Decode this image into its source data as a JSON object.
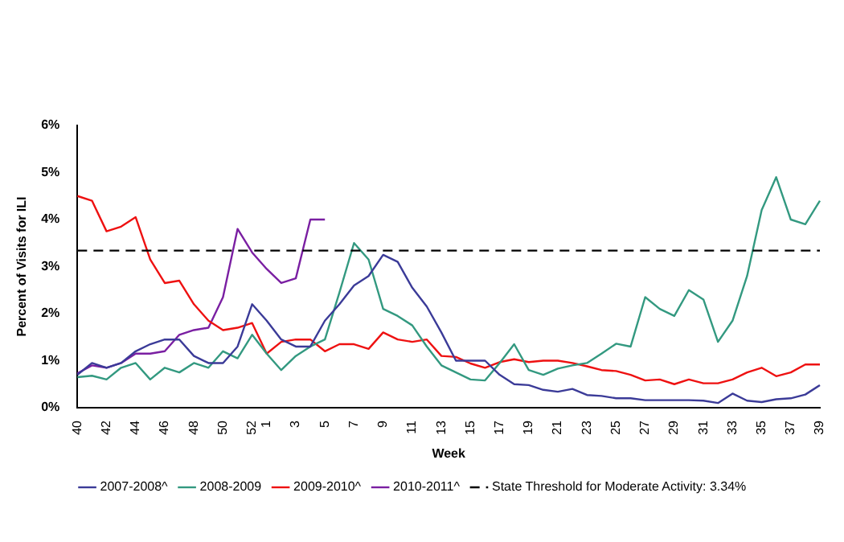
{
  "chart_data": {
    "type": "line",
    "xlabel": "Week",
    "ylabel": "Percent of Visits for ILI",
    "categories": [
      "40",
      null,
      "42",
      null,
      "44",
      null,
      "46",
      null,
      "48",
      null,
      "50",
      null,
      "52",
      "1",
      null,
      "3",
      null,
      "5",
      null,
      "7",
      null,
      "9",
      null,
      "11",
      null,
      "13",
      null,
      "15",
      null,
      "17",
      null,
      "19",
      null,
      "21",
      null,
      "23",
      null,
      "25",
      null,
      "27",
      null,
      "29",
      null,
      "31",
      null,
      "33",
      null,
      "35",
      null,
      "37",
      null,
      "39"
    ],
    "series": [
      {
        "name": "2007-2008^",
        "color": "#3b3b98",
        "values": [
          0.7,
          0.95,
          0.85,
          0.95,
          1.2,
          1.35,
          1.45,
          1.45,
          1.1,
          0.95,
          0.95,
          1.3,
          2.2,
          1.85,
          1.45,
          1.3,
          1.3,
          1.85,
          2.2,
          2.6,
          2.8,
          3.25,
          3.1,
          2.55,
          2.15,
          1.6,
          1.0,
          1.0,
          1.0,
          0.7,
          0.5,
          0.48,
          0.38,
          0.34,
          0.4,
          0.27,
          0.25,
          0.2,
          0.2,
          0.16,
          0.16,
          0.16,
          0.16,
          0.15,
          0.1,
          0.3,
          0.15,
          0.12,
          0.18,
          0.2,
          0.28,
          0.48
        ]
      },
      {
        "name": "2008-2009",
        "color": "#339980",
        "values": [
          0.65,
          0.68,
          0.6,
          0.85,
          0.95,
          0.6,
          0.85,
          0.75,
          0.95,
          0.85,
          1.2,
          1.05,
          1.55,
          1.15,
          0.8,
          1.1,
          1.3,
          1.45,
          2.45,
          3.5,
          3.15,
          2.1,
          1.95,
          1.75,
          1.3,
          0.9,
          0.75,
          0.6,
          0.58,
          0.95,
          1.35,
          0.8,
          0.7,
          0.83,
          0.9,
          0.95,
          1.15,
          1.36,
          1.3,
          2.35,
          2.1,
          1.95,
          2.5,
          2.3,
          1.4,
          1.85,
          2.8,
          4.2,
          4.9,
          4.0,
          3.9,
          4.4
        ]
      },
      {
        "name": "2009-2010^",
        "color": "#ee1111",
        "values": [
          4.5,
          4.4,
          3.75,
          3.85,
          4.05,
          3.15,
          2.65,
          2.7,
          2.2,
          1.85,
          1.65,
          1.7,
          1.8,
          1.15,
          1.4,
          1.45,
          1.45,
          1.2,
          1.35,
          1.35,
          1.25,
          1.6,
          1.45,
          1.4,
          1.45,
          1.1,
          1.08,
          0.94,
          0.85,
          0.97,
          1.03,
          0.97,
          1.0,
          1.0,
          0.95,
          0.88,
          0.8,
          0.78,
          0.7,
          0.58,
          0.6,
          0.5,
          0.6,
          0.52,
          0.52,
          0.6,
          0.75,
          0.85,
          0.67,
          0.75,
          0.92,
          0.92
        ]
      },
      {
        "name": "2010-2011^",
        "color": "#7a1fa2",
        "values": [
          0.73,
          0.9,
          0.85,
          0.95,
          1.15,
          1.15,
          1.2,
          1.55,
          1.65,
          1.7,
          2.35,
          3.8,
          3.3,
          2.95,
          2.65,
          2.75,
          4.0,
          4.0,
          null,
          null,
          null,
          null,
          null,
          null,
          null,
          null,
          null,
          null,
          null,
          null,
          null,
          null,
          null,
          null,
          null,
          null,
          null,
          null,
          null,
          null,
          null,
          null,
          null,
          null,
          null,
          null,
          null,
          null,
          null,
          null,
          null,
          null
        ]
      }
    ],
    "ref_lines": [
      {
        "axis": "y",
        "value": 3.34,
        "label": "State Threshold for Moderate Activity: 3.34%",
        "color": "#000000",
        "line_style": "dashed"
      }
    ],
    "ylim": [
      0,
      6
    ],
    "yticks": [
      {
        "value": 0,
        "label": "0%"
      },
      {
        "value": 1,
        "label": "1%"
      },
      {
        "value": 2,
        "label": "2%"
      },
      {
        "value": 3,
        "label": "3%"
      },
      {
        "value": 4,
        "label": "4%"
      },
      {
        "value": 5,
        "label": "5%"
      },
      {
        "value": 6,
        "label": "6%"
      }
    ],
    "grid": false,
    "legend": "bottom",
    "marker": "none",
    "line_style": "solid"
  }
}
